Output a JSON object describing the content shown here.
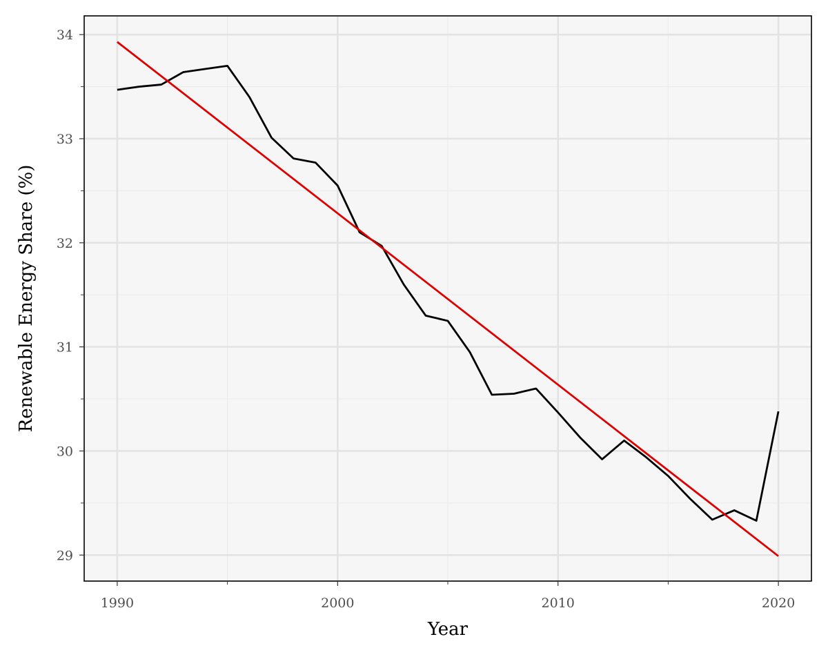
{
  "chart_data": {
    "type": "line",
    "title": "",
    "xlabel": "Year",
    "ylabel": "Renewable Energy Share (%)",
    "xlim": [
      1988.5,
      2021.5
    ],
    "ylim": [
      28.75,
      34.18
    ],
    "x_ticks": [
      1990,
      2000,
      2010,
      2020
    ],
    "y_ticks": [
      29,
      30,
      31,
      32,
      33,
      34
    ],
    "x_tick_labels": [
      "1990",
      "2000",
      "2010",
      "2020"
    ],
    "y_tick_labels": [
      "29",
      "30",
      "31",
      "32",
      "33",
      "34"
    ],
    "grid": true,
    "background_color": "#f6f6f6",
    "grid_color": "#e3e3e3",
    "series": [
      {
        "color": "#000000",
        "x": [
          1990,
          1991,
          1992,
          1993,
          1994,
          1995,
          1996,
          1997,
          1998,
          1999,
          2000,
          2001,
          2002,
          2003,
          2004,
          2005,
          2006,
          2007,
          2008,
          2009,
          2010,
          2011,
          2012,
          2013,
          2014,
          2015,
          2016,
          2017,
          2018,
          2019,
          2020
        ],
        "y": [
          33.47,
          33.5,
          33.52,
          33.64,
          33.67,
          33.7,
          33.4,
          33.01,
          32.81,
          32.77,
          32.55,
          32.1,
          31.97,
          31.6,
          31.3,
          31.25,
          30.95,
          30.54,
          30.55,
          30.6,
          30.37,
          30.13,
          29.92,
          30.1,
          29.94,
          29.76,
          29.54,
          29.34,
          29.43,
          29.33,
          30.38
        ]
      },
      {
        "color": "#e00000",
        "x": [
          1990,
          2020
        ],
        "y": [
          33.93,
          28.99
        ]
      }
    ]
  }
}
